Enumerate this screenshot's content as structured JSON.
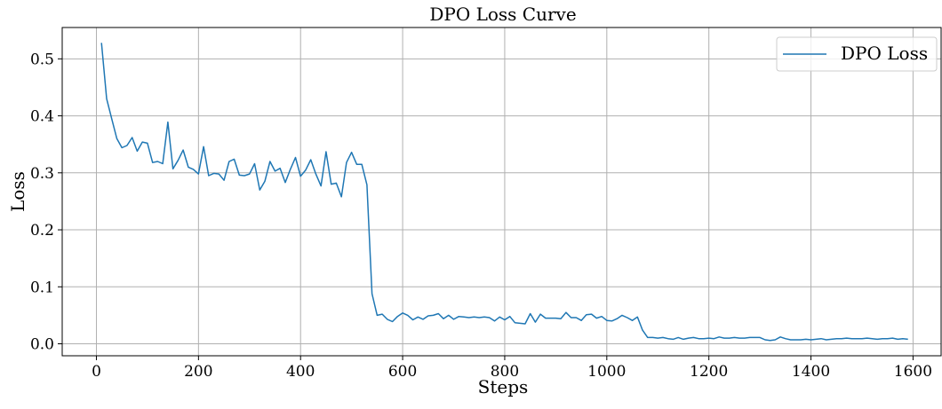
{
  "chart_data": {
    "type": "line",
    "title": "DPO Loss Curve",
    "xlabel": "Steps",
    "ylabel": "Loss",
    "xlim": [
      -67,
      1655
    ],
    "ylim": [
      -0.021,
      0.555
    ],
    "xticks": [
      0,
      200,
      400,
      600,
      800,
      1000,
      1200,
      1400,
      1600
    ],
    "yticks": [
      0.0,
      0.1,
      0.2,
      0.3,
      0.4,
      0.5
    ],
    "xtick_labels": [
      "0",
      "200",
      "400",
      "600",
      "800",
      "1000",
      "1200",
      "1400",
      "1600"
    ],
    "ytick_labels": [
      "0.0",
      "0.1",
      "0.2",
      "0.3",
      "0.4",
      "0.5"
    ],
    "grid": true,
    "legend_position": "top-right",
    "series": [
      {
        "name": "DPO Loss",
        "color": "#1f77b4",
        "x": [
          10,
          20,
          30,
          40,
          50,
          60,
          70,
          80,
          90,
          100,
          110,
          120,
          130,
          140,
          150,
          160,
          170,
          180,
          190,
          200,
          210,
          220,
          230,
          240,
          250,
          260,
          270,
          280,
          290,
          300,
          310,
          320,
          330,
          340,
          350,
          360,
          370,
          380,
          390,
          400,
          410,
          420,
          430,
          440,
          450,
          460,
          470,
          480,
          490,
          500,
          510,
          520,
          530,
          540,
          550,
          560,
          570,
          580,
          590,
          600,
          610,
          620,
          630,
          640,
          650,
          660,
          670,
          680,
          690,
          700,
          710,
          720,
          730,
          740,
          750,
          760,
          770,
          780,
          790,
          800,
          810,
          820,
          830,
          840,
          850,
          860,
          870,
          880,
          890,
          900,
          910,
          920,
          930,
          940,
          950,
          960,
          970,
          980,
          990,
          1000,
          1010,
          1020,
          1030,
          1040,
          1050,
          1060,
          1070,
          1080,
          1090,
          1100,
          1110,
          1120,
          1130,
          1140,
          1150,
          1160,
          1170,
          1180,
          1190,
          1200,
          1210,
          1220,
          1230,
          1240,
          1250,
          1260,
          1270,
          1280,
          1290,
          1300,
          1310,
          1320,
          1330,
          1340,
          1350,
          1360,
          1370,
          1380,
          1390,
          1400,
          1410,
          1420,
          1430,
          1440,
          1450,
          1460,
          1470,
          1480,
          1490,
          1500,
          1510,
          1520,
          1530,
          1540,
          1550,
          1560,
          1570,
          1580,
          1590
        ],
        "y": [
          0.528,
          0.43,
          0.395,
          0.36,
          0.344,
          0.348,
          0.362,
          0.338,
          0.354,
          0.352,
          0.318,
          0.32,
          0.316,
          0.389,
          0.307,
          0.322,
          0.34,
          0.31,
          0.306,
          0.298,
          0.346,
          0.295,
          0.299,
          0.298,
          0.287,
          0.32,
          0.324,
          0.296,
          0.295,
          0.298,
          0.316,
          0.27,
          0.285,
          0.32,
          0.303,
          0.308,
          0.283,
          0.306,
          0.327,
          0.294,
          0.305,
          0.323,
          0.298,
          0.277,
          0.337,
          0.28,
          0.282,
          0.258,
          0.318,
          0.336,
          0.315,
          0.315,
          0.279,
          0.088,
          0.05,
          0.052,
          0.043,
          0.039,
          0.048,
          0.054,
          0.05,
          0.042,
          0.047,
          0.043,
          0.049,
          0.05,
          0.053,
          0.044,
          0.05,
          0.043,
          0.048,
          0.047,
          0.046,
          0.047,
          0.046,
          0.047,
          0.046,
          0.04,
          0.047,
          0.042,
          0.048,
          0.037,
          0.036,
          0.035,
          0.053,
          0.038,
          0.052,
          0.045,
          0.045,
          0.045,
          0.044,
          0.055,
          0.046,
          0.046,
          0.041,
          0.051,
          0.052,
          0.045,
          0.048,
          0.041,
          0.04,
          0.044,
          0.05,
          0.046,
          0.041,
          0.047,
          0.024,
          0.011,
          0.011,
          0.01,
          0.011,
          0.009,
          0.008,
          0.011,
          0.008,
          0.01,
          0.011,
          0.009,
          0.009,
          0.01,
          0.009,
          0.012,
          0.01,
          0.01,
          0.011,
          0.01,
          0.01,
          0.011,
          0.011,
          0.011,
          0.007,
          0.006,
          0.007,
          0.012,
          0.009,
          0.007,
          0.007,
          0.007,
          0.008,
          0.007,
          0.008,
          0.009,
          0.007,
          0.008,
          0.009,
          0.009,
          0.01,
          0.009,
          0.009,
          0.009,
          0.01,
          0.009,
          0.008,
          0.009,
          0.009,
          0.01,
          0.008,
          0.009,
          0.008
        ]
      }
    ]
  }
}
